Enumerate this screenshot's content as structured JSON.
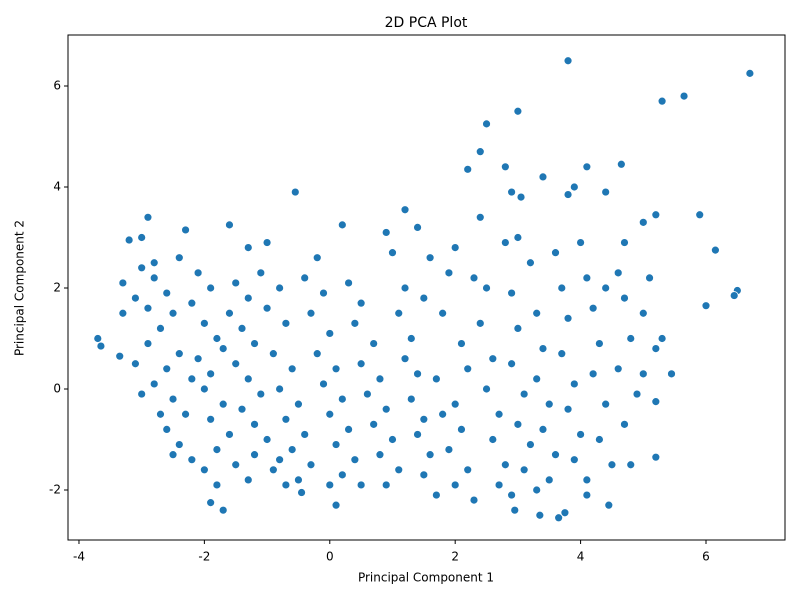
{
  "chart_data": {
    "type": "scatter",
    "title": "2D PCA Plot",
    "x_label": "Principal Component 1",
    "y_label": "Principal Component 2",
    "color": "#1f77b4",
    "xlim": [
      -4.175,
      7.26
    ],
    "ylim": [
      -2.99,
      7.01
    ],
    "xticks": [
      -4,
      -2,
      0,
      2,
      4,
      6
    ],
    "yticks": [
      -2,
      0,
      2,
      4,
      6
    ],
    "x": [
      3.8,
      6.7,
      5.65,
      5.3,
      3.0,
      2.5,
      2.4,
      2.2,
      2.8,
      4.65,
      4.1,
      3.4,
      3.8,
      3.9,
      4.4,
      -0.55,
      3.05,
      2.9,
      -2.9,
      1.2,
      0.2,
      -1.6,
      -2.3,
      -3.2,
      -3.0,
      5.9,
      5.2,
      6.15,
      6.0,
      6.5,
      6.45,
      -3.7,
      -3.65,
      -3.35,
      5.45,
      5.2,
      5.2,
      4.8,
      4.45,
      3.65,
      3.35,
      2.95,
      0.1,
      -1.7,
      -1.9,
      -0.45,
      4.1,
      3.75,
      -3,
      -2.8,
      -2.6,
      -2.9,
      -3.1,
      -2.5,
      -2.7,
      -2.9,
      -2.4,
      -2.6,
      -2.8,
      -2.5,
      -2.3,
      -2.6,
      -2.4,
      -2.2,
      -2.0,
      -1.8,
      -2.1,
      -1.9,
      -2.2,
      -2.0,
      -1.8,
      -2.1,
      -1.9,
      -2.0,
      -1.7,
      -1.9,
      -1.6,
      -1.8,
      -1.5,
      -1.3,
      -1.5,
      -1.3,
      -1.6,
      -1.4,
      -1.2,
      -1.5,
      -1.3,
      -1.1,
      -1.4,
      -1.2,
      -1.0,
      -1.2,
      -0.9,
      -0.7,
      -1.0,
      -0.8,
      -1.0,
      -0.7,
      -0.9,
      -0.6,
      -0.8,
      -0.5,
      -0.7,
      -0.4,
      -0.6,
      -0.3,
      -0.5,
      -0.2,
      -0.4,
      -0.1,
      -0.3,
      0.0,
      -0.2,
      0.1,
      -0.1,
      0.2,
      0.0,
      0.3,
      0.1,
      0.4,
      0.2,
      0.5,
      0.3,
      0.5,
      0.4,
      0.7,
      0.5,
      0.8,
      0.6,
      0.9,
      0.7,
      1.0,
      0.8,
      1.1,
      0.9,
      0.9,
      1.0,
      1.2,
      1.1,
      1.3,
      1.2,
      1.4,
      1.3,
      1.5,
      1.4,
      1.6,
      1.5,
      1.7,
      -3.3,
      -3.3,
      -3.0,
      -2.7,
      -2.5,
      -2.2,
      -1.7,
      -1.1,
      -0.8,
      0.0,
      1.5,
      1.4,
      -3.1,
      -2.8,
      -2.4,
      -1.3,
      1.8,
      1.9,
      2.0,
      2.1,
      2.2,
      2.0,
      2.1,
      1.9,
      2.2,
      2.0,
      2.3,
      2.4,
      2.5,
      2.4,
      2.6,
      2.5,
      2.7,
      2.6,
      2.8,
      2.7,
      2.9,
      2.8,
      2.9,
      3.0,
      2.9,
      3.1,
      3.0,
      3.2,
      3.1,
      3.3,
      3.2,
      3.3,
      3.4,
      3.3,
      3.5,
      3.4,
      3.6,
      3.5,
      3.6,
      3.7,
      3.8,
      3.7,
      3.9,
      3.8,
      4.0,
      3.9,
      4.1,
      4.0,
      4.1,
      4.2,
      4.3,
      4.2,
      4.4,
      4.3,
      4.5,
      4.6,
      4.7,
      4.8,
      4.6,
      4.9,
      4.7,
      5.0,
      5.1,
      5.0,
      5.2,
      5.0,
      5.3,
      4.4,
      2.3,
      3.0,
      1.7,
      1.8,
      1.6,
      4.7
    ],
    "values": [
      6.5,
      6.25,
      5.8,
      5.7,
      5.5,
      5.25,
      4.7,
      4.35,
      4.4,
      4.45,
      4.4,
      4.2,
      3.85,
      4.0,
      3.9,
      3.9,
      3.8,
      3.9,
      3.4,
      3.55,
      3.25,
      3.25,
      3.15,
      2.95,
      3.0,
      3.45,
      3.45,
      2.75,
      1.65,
      1.95,
      1.85,
      1.0,
      0.85,
      0.65,
      0.3,
      -0.25,
      -1.35,
      -1.5,
      -2.3,
      -2.55,
      -2.5,
      -2.4,
      -2.3,
      -2.4,
      -2.25,
      -2.05,
      -2.1,
      -2.45,
      2.4,
      2.2,
      1.9,
      1.6,
      1.8,
      1.5,
      1.2,
      0.9,
      0.7,
      0.4,
      0.1,
      -0.2,
      -0.5,
      -0.8,
      -1.1,
      -1.4,
      -1.6,
      -1.9,
      2.3,
      2.0,
      1.7,
      1.3,
      1.0,
      0.6,
      0.3,
      0.0,
      -0.3,
      -0.6,
      -0.9,
      -1.2,
      -1.5,
      -1.8,
      2.1,
      1.8,
      1.5,
      1.2,
      0.9,
      0.5,
      0.2,
      -0.1,
      -0.4,
      -0.7,
      -1.0,
      -1.3,
      -1.6,
      -1.9,
      2.9,
      2.0,
      1.6,
      1.3,
      0.7,
      0.4,
      0.0,
      -0.3,
      -0.6,
      -0.9,
      -1.2,
      -1.5,
      -1.8,
      2.6,
      2.2,
      1.9,
      1.5,
      1.1,
      0.7,
      0.4,
      0.1,
      -0.2,
      -0.5,
      -0.8,
      -1.1,
      -1.4,
      -1.7,
      -1.9,
      2.1,
      1.7,
      1.3,
      0.9,
      0.5,
      0.2,
      -0.1,
      -0.4,
      -0.7,
      -1.0,
      -1.3,
      -1.6,
      -1.9,
      3.1,
      2.7,
      2.0,
      1.5,
      1.0,
      0.6,
      0.3,
      -0.2,
      -0.6,
      -0.9,
      -1.3,
      -1.7,
      -2.1,
      1.5,
      2.1,
      -0.1,
      -0.5,
      -1.3,
      0.2,
      0.8,
      2.3,
      -1.4,
      -1.9,
      1.8,
      3.2,
      0.5,
      2.5,
      2.6,
      2.8,
      1.5,
      2.3,
      2.8,
      0.9,
      0.4,
      -0.3,
      -0.8,
      -1.2,
      -1.6,
      -1.9,
      -2.2,
      1.3,
      2.0,
      3.4,
      0.6,
      0.0,
      -0.5,
      -1.0,
      -1.5,
      -1.9,
      -2.1,
      2.9,
      1.9,
      1.2,
      0.5,
      -0.1,
      -0.7,
      -1.1,
      -1.6,
      -2.0,
      2.5,
      1.5,
      0.8,
      0.2,
      -0.3,
      -0.8,
      -1.3,
      -1.8,
      2.7,
      2.0,
      1.4,
      0.7,
      0.1,
      -0.4,
      -0.9,
      -1.4,
      -1.8,
      2.9,
      2.2,
      1.6,
      0.9,
      0.3,
      -0.3,
      -1.0,
      -1.5,
      2.3,
      1.8,
      1.0,
      0.4,
      -0.1,
      -0.7,
      3.3,
      2.2,
      1.5,
      0.8,
      0.3,
      1.0,
      2.0,
      2.2,
      3.0,
      0.2,
      -0.5,
      2.6,
      2.9
    ]
  }
}
